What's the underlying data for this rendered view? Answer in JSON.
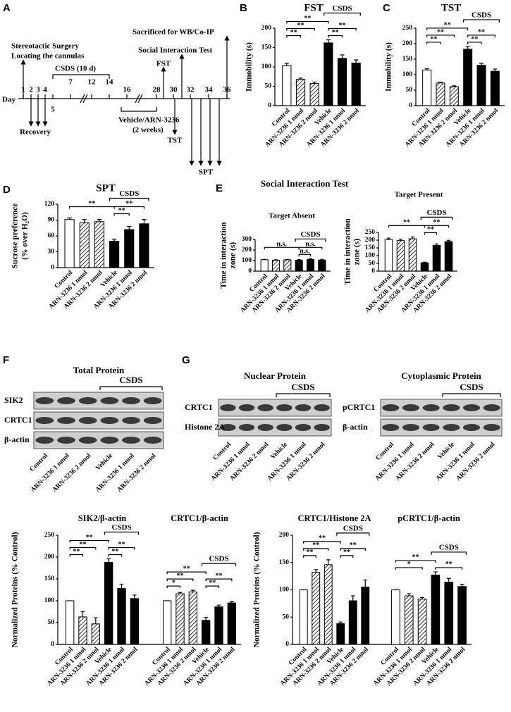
{
  "panel_labels": [
    "A",
    "B",
    "C",
    "D",
    "E",
    "F",
    "G"
  ],
  "timeline": {
    "day": "Day",
    "days": [
      "1",
      "2",
      "3",
      "4",
      "5",
      "7",
      "12",
      "14",
      "16",
      "28",
      "30",
      "32",
      "34",
      "36"
    ],
    "surgery": "Stereotactic Surgery",
    "cannulas": "Locating the cannulas",
    "csds": "CSDS (10 d)",
    "recovery": "Recovery",
    "treatment": "Vehicle/ARN-3236",
    "duration": "(2 weeks)",
    "tst": "TST",
    "fst": "FST",
    "spt": "SPT",
    "social": "Social Interaction Test",
    "sacrificed": "Sacrificed for WB/Co-IP"
  },
  "social_interaction_title": "Social Interaction Test",
  "blots": {
    "categories": [
      "Control",
      "ARN-3236 1 nmol",
      "ARN-3236 2 nmol",
      "Vehicle",
      "ARN-3236 1 nmol",
      "ARN-3236 2 nmol"
    ],
    "panels": [
      {
        "title": "Total Protein",
        "group_label": "CSDS",
        "rows": [
          "SIK2",
          "CRTC1",
          "β-actin"
        ]
      },
      {
        "title": "Nuclear Protein",
        "group_label": "CSDS",
        "rows": [
          "CRTC1",
          "Histone 2A"
        ]
      },
      {
        "title": "Cytoplasmic Protein",
        "group_label": "CSDS",
        "rows": [
          "pCRTC1",
          "β-actin"
        ]
      }
    ]
  },
  "chart_data": [
    {
      "type": "bar",
      "title": "FST",
      "y_label": [
        "Immobility (s)"
      ],
      "ylim": [
        0,
        200
      ],
      "yticks": [
        0,
        50,
        100,
        150,
        200
      ],
      "categories": [
        "Control",
        "ARN-3236 1 nmol",
        "ARN-3236 2 nmol",
        "Vehicle",
        "ARN-3236 1 nmol",
        "ARN-3236 2 nmol"
      ],
      "bar_styles": [
        "open",
        "hatched",
        "hatched",
        "filled",
        "filled",
        "filled"
      ],
      "groups": [
        {
          "values": [
            103,
            68,
            57,
            162,
            122,
            110
          ],
          "errors": [
            6,
            3,
            4,
            8,
            9,
            8
          ],
          "annotations": [
            "**",
            "**",
            "**",
            "**",
            "**"
          ],
          "group_label": "CSDS"
        }
      ]
    },
    {
      "type": "bar",
      "title": "TST",
      "y_label": [
        "Immobility (s)"
      ],
      "ylim": [
        0,
        250
      ],
      "yticks": [
        0,
        50,
        100,
        150,
        200,
        250
      ],
      "categories": [
        "Control",
        "ARN-3236 1 nmol",
        "ARN-3236 2 nmol",
        "Vehicle",
        "ARN-3236 1 nmol",
        "ARN-3236 2 nmol"
      ],
      "bar_styles": [
        "open",
        "hatched",
        "hatched",
        "filled",
        "filled",
        "filled"
      ],
      "groups": [
        {
          "values": [
            115,
            73,
            61,
            182,
            130,
            111
          ],
          "errors": [
            4,
            3,
            3,
            9,
            7,
            7
          ],
          "annotations": [
            "**",
            "**",
            "**",
            "**",
            "**"
          ],
          "group_label": "CSDS"
        }
      ]
    },
    {
      "type": "bar",
      "title": "SPT",
      "y_label": [
        "Sucrose preference",
        "(% over H₂O)"
      ],
      "ylim": [
        0,
        120
      ],
      "yticks": [
        0,
        30,
        60,
        90,
        120
      ],
      "categories": [
        "Control",
        "ARN-3236 1 nmol",
        "ARN-3236 2 nmol",
        "Vehicle",
        "ARN-3236 1 nmol",
        "ARN-3236 2 nmol"
      ],
      "bar_styles": [
        "open",
        "hatched",
        "hatched",
        "filled",
        "filled",
        "filled"
      ],
      "groups": [
        {
          "values": [
            91,
            85,
            87,
            50,
            72,
            83
          ],
          "errors": [
            3,
            6,
            4,
            4,
            6,
            8
          ],
          "annotations": [
            "**",
            "**",
            "**"
          ],
          "group_label": "CSDS"
        }
      ]
    },
    {
      "type": "bar",
      "title": "Target Absent",
      "y_label": [
        "Time in interaction",
        "zone (s)"
      ],
      "ylim": [
        0,
        300
      ],
      "yticks": [
        0,
        100,
        200,
        300
      ],
      "categories": [
        "Control",
        "ARN-3236 1 nmol",
        "ARN-3236 2 nmol",
        "Vehicle",
        "ARN-3236 1 nmol",
        "ARN-3236 2 nmol"
      ],
      "bar_styles": [
        "open",
        "hatched",
        "hatched",
        "filled",
        "filled",
        "filled"
      ],
      "groups": [
        {
          "values": [
            108,
            104,
            107,
            103,
            110,
            105
          ],
          "errors": [
            4,
            4,
            4,
            6,
            8,
            7
          ],
          "annotations": [
            "n.s.",
            "n.s.",
            "n.s."
          ],
          "group_label": "CSDS"
        }
      ]
    },
    {
      "type": "bar",
      "title": "Target Present",
      "y_label": [
        "Time in interaction",
        "zone (s)"
      ],
      "ylim": [
        0,
        250
      ],
      "yticks": [
        0,
        50,
        100,
        150,
        200,
        250
      ],
      "categories": [
        "Control",
        "ARN-3236 1 nmol",
        "ARN-3236 2 nmol",
        "Vehicle",
        "ARN-3236 1 nmol",
        "ARN-3236 2 nmol"
      ],
      "bar_styles": [
        "open",
        "hatched",
        "hatched",
        "filled",
        "filled",
        "filled"
      ],
      "groups": [
        {
          "values": [
            203,
            197,
            209,
            54,
            166,
            191
          ],
          "errors": [
            10,
            10,
            12,
            4,
            9,
            8
          ],
          "annotations": [
            "**",
            "**",
            "**"
          ],
          "group_label": "CSDS"
        }
      ]
    },
    {
      "type": "bar",
      "y_label": [
        "Normalized Proteins (% Control)"
      ],
      "ylim": [
        0,
        250
      ],
      "yticks": [
        0,
        50,
        100,
        150,
        200,
        250
      ],
      "categories": [
        "Control",
        "ARN-3236 1 nmol",
        "ARN-3236 2 nmol",
        "Vehicle",
        "ARN-3236 1 nmol",
        "ARN-3236 2 nmol"
      ],
      "bar_styles": [
        "open",
        "hatched",
        "hatched",
        "filled",
        "filled",
        "filled"
      ],
      "groups": [
        {
          "title": "SIK2/β-actin",
          "values": [
            100,
            63,
            47,
            188,
            128,
            105
          ],
          "errors": [
            0,
            12,
            14,
            8,
            10,
            8
          ],
          "annotations": [
            "**",
            "**",
            "**",
            "**",
            "**"
          ],
          "group_label": "CSDS"
        },
        {
          "title": "CRTC1/β-actin",
          "values": [
            100,
            116,
            120,
            55,
            86,
            95
          ],
          "errors": [
            0,
            3,
            4,
            7,
            4,
            3
          ],
          "annotations": [
            "*",
            "**",
            "**",
            "**",
            "**"
          ],
          "group_label": "CSDS"
        }
      ]
    },
    {
      "type": "bar",
      "y_label": [
        "Normalized Proteins (% Control)"
      ],
      "ylim": [
        0,
        200
      ],
      "yticks": [
        0,
        50,
        100,
        150,
        200
      ],
      "categories": [
        "Control",
        "ARN-3236 1 nmol",
        "ARN-3236 2 nmol",
        "Vehicle",
        "ARN-3236 1 nmol",
        "ARN-3236 2 nmol"
      ],
      "bar_styles": [
        "open",
        "hatched",
        "hatched",
        "filled",
        "filled",
        "filled"
      ],
      "groups": [
        {
          "title": "CRTC1/Histone 2A",
          "values": [
            100,
            132,
            146,
            38,
            80,
            105
          ],
          "errors": [
            0,
            5,
            9,
            3,
            9,
            13
          ],
          "annotations": [
            "**",
            "**",
            "**",
            "**",
            "**"
          ],
          "group_label": "CSDS"
        },
        {
          "title": "pCRTC1/β-actin",
          "values": [
            100,
            89,
            83,
            127,
            114,
            106
          ],
          "errors": [
            0,
            4,
            3,
            6,
            7,
            4
          ],
          "annotations": [
            "*",
            "**",
            "**"
          ],
          "group_label": "CSDS"
        }
      ]
    }
  ]
}
